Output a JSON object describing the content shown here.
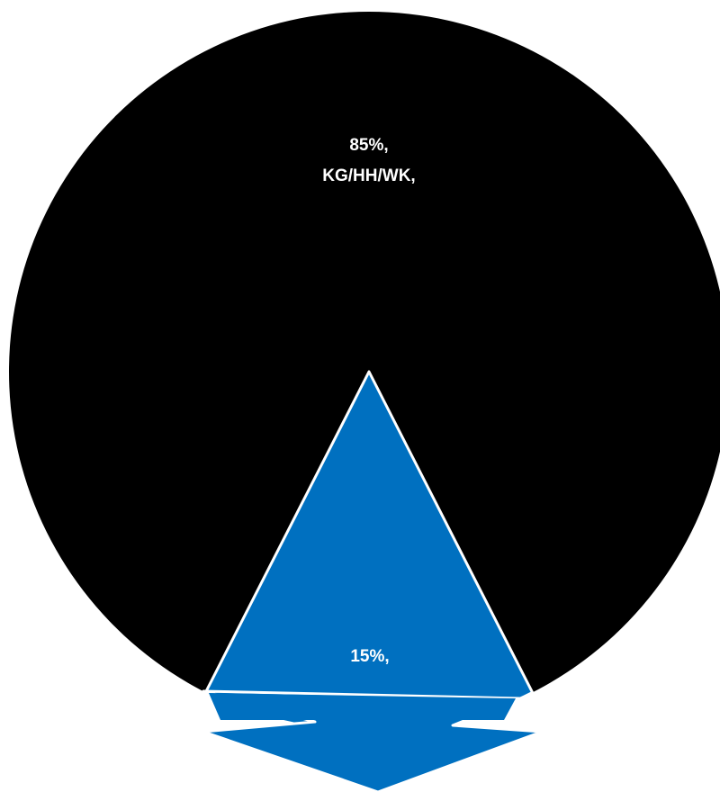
{
  "chart_data": {
    "type": "pie",
    "slices": [
      {
        "value": 85,
        "label_lines": [
          "85%,",
          "KG/HH/WK,"
        ],
        "color": "#000000"
      },
      {
        "value": 15,
        "label_lines": [
          "15%,"
        ],
        "color": "#0070C0"
      }
    ],
    "callout_arrow": {
      "color": "#0070C0",
      "direction": "down"
    }
  }
}
